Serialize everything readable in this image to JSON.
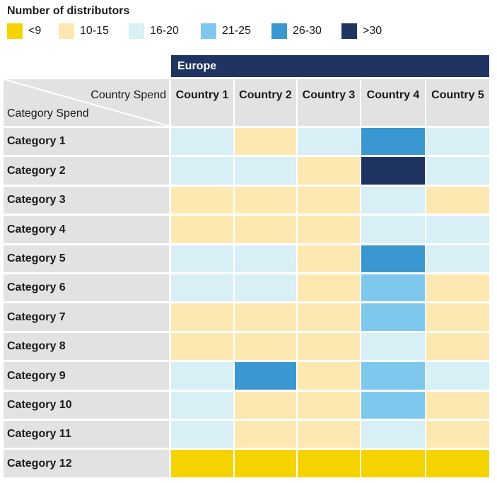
{
  "legend": {
    "title": "Number of distributors",
    "items": [
      {
        "label": "<9",
        "color": "#f5d300"
      },
      {
        "label": "10-15",
        "color": "#fde8b2"
      },
      {
        "label": "16-20",
        "color": "#d7eff5"
      },
      {
        "label": "21-25",
        "color": "#7dc8ec"
      },
      {
        "label": "26-30",
        "color": "#3b97d0"
      },
      {
        "label": ">30",
        "color": "#1f3461"
      }
    ]
  },
  "chart_data": {
    "type": "heatmap",
    "title": "Number of distributors",
    "region": "Europe",
    "x_axis_title": "Country Spend",
    "y_axis_title": "Category Spend",
    "columns": [
      "Country 1",
      "Country 2",
      "Country 3",
      "Country 4",
      "Country 5"
    ],
    "rows": [
      "Category 1",
      "Category 2",
      "Category 3",
      "Category 4",
      "Category 5",
      "Category 6",
      "Category 7",
      "Category 8",
      "Category 9",
      "Category 10",
      "Category 11",
      "Category 12"
    ],
    "bins": [
      "<9",
      "10-15",
      "16-20",
      "21-25",
      "26-30",
      ">30"
    ],
    "values": [
      [
        "16-20",
        "10-15",
        "16-20",
        "26-30",
        "16-20"
      ],
      [
        "16-20",
        "16-20",
        "10-15",
        ">30",
        "16-20"
      ],
      [
        "10-15",
        "10-15",
        "10-15",
        "16-20",
        "10-15"
      ],
      [
        "10-15",
        "10-15",
        "10-15",
        "16-20",
        "16-20"
      ],
      [
        "16-20",
        "16-20",
        "10-15",
        "26-30",
        "16-20"
      ],
      [
        "16-20",
        "16-20",
        "10-15",
        "21-25",
        "10-15"
      ],
      [
        "10-15",
        "10-15",
        "10-15",
        "21-25",
        "10-15"
      ],
      [
        "10-15",
        "10-15",
        "10-15",
        "16-20",
        "10-15"
      ],
      [
        "16-20",
        "26-30",
        "10-15",
        "21-25",
        "16-20"
      ],
      [
        "16-20",
        "10-15",
        "10-15",
        "21-25",
        "10-15"
      ],
      [
        "16-20",
        "10-15",
        "10-15",
        "16-20",
        "10-15"
      ],
      [
        "<9",
        "<9",
        "<9",
        "<9",
        "<9"
      ]
    ]
  }
}
